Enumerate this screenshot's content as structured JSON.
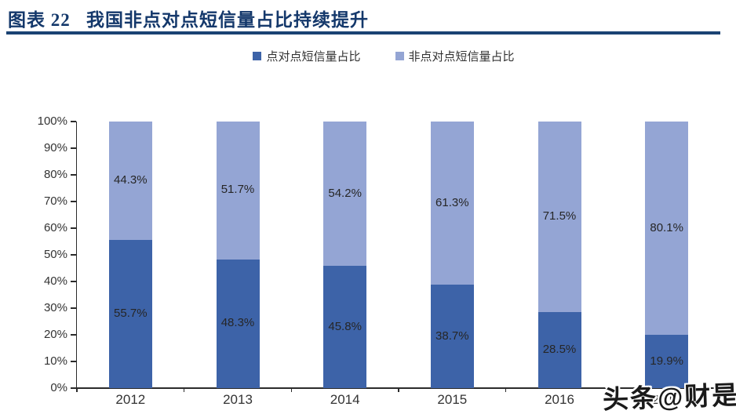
{
  "title": {
    "text": "图表 22   我国非点对点短信量占比持续提升"
  },
  "watermark": {
    "text": "头条@财是"
  },
  "colors": {
    "title_navy": "#14386B",
    "rule_navy": "#1B4373",
    "series_dark_blue": "#3D63A8",
    "series_light_blue": "#94A5D4",
    "axis": "#2b2b2b",
    "text": "#333333"
  },
  "chart_data": {
    "type": "bar",
    "stacked": true,
    "title": "图表 22 我国非点对点短信量占比持续提升",
    "categories": [
      "2012",
      "2013",
      "2014",
      "2015",
      "2016",
      "2017"
    ],
    "series": [
      {
        "name": "点对点短信量占比",
        "color": "#3D63A8",
        "values": [
          55.7,
          48.3,
          45.8,
          38.7,
          28.5,
          19.9
        ]
      },
      {
        "name": "非点对点短信量占比",
        "color": "#94A5D4",
        "values": [
          44.3,
          51.7,
          54.2,
          61.3,
          71.5,
          80.1
        ]
      }
    ],
    "value_labels": true,
    "value_label_format": "percent",
    "xlabel": "",
    "ylabel": "",
    "ylim": [
      0,
      100
    ],
    "ytick_step": 10,
    "yticklabels": [
      "0%",
      "10%",
      "20%",
      "30%",
      "40%",
      "50%",
      "60%",
      "70%",
      "80%",
      "90%",
      "100%"
    ],
    "grid": false,
    "legend_position": "top-center"
  }
}
